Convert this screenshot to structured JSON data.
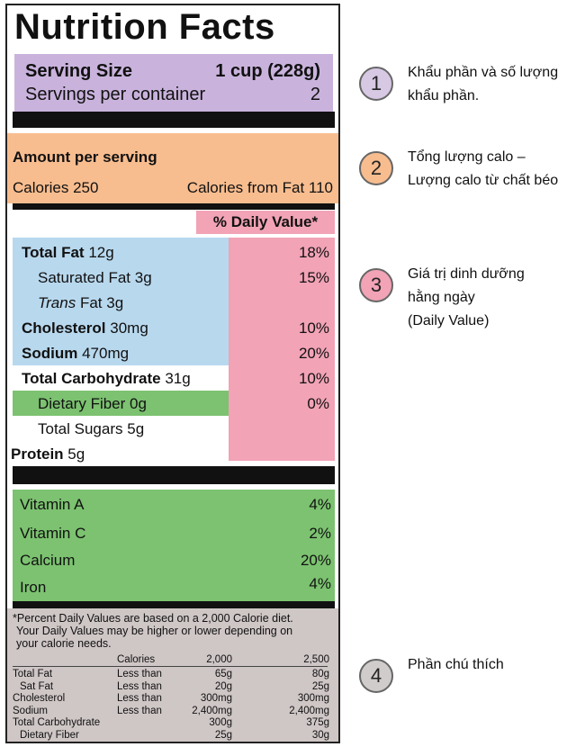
{
  "title": "Nutrition Facts",
  "serving": {
    "size_label": "Serving Size",
    "size_value": "1 cup (228g)",
    "per_container_label": "Servings per container",
    "per_container_value": "2"
  },
  "amount": {
    "header": "Amount per serving",
    "calories": "Calories 250",
    "calories_fat": "Calories from Fat 110"
  },
  "dv_header": "% Daily Value*",
  "nutrients": [
    {
      "name": "Total Fat",
      "amount": "12g",
      "pct": "18%"
    },
    {
      "name": "Saturated Fat",
      "amount": "3g",
      "pct": "15%"
    },
    {
      "name": "Trans",
      "name2": "Fat",
      "amount": "3g",
      "pct": ""
    },
    {
      "name": "Cholesterol",
      "amount": "30mg",
      "pct": "10%"
    },
    {
      "name": "Sodium",
      "amount": "470mg",
      "pct": "20%"
    },
    {
      "name": "Total Carbohydrate",
      "amount": "31g",
      "pct": "10%"
    },
    {
      "name": "Dietary Fiber",
      "amount": "0g",
      "pct": "0%"
    },
    {
      "name": "Total Sugars",
      "amount": "5g",
      "pct": ""
    },
    {
      "name": "Protein",
      "amount": "5g",
      "pct": ""
    }
  ],
  "vitamins": [
    {
      "name": "Vitamin A",
      "pct": "4%"
    },
    {
      "name": "Vitamin C",
      "pct": "2%"
    },
    {
      "name": "Calcium",
      "pct": "20%"
    },
    {
      "name": "Iron",
      "pct": "4%"
    }
  ],
  "footnote": {
    "text1": "*Percent Daily Values are based on a 2,000 Calorie diet.",
    "text2": "Your Daily Values may be higher or lower depending on",
    "text3": "your calorie needs.",
    "table": {
      "header": [
        "Calories",
        "2,000",
        "2,500"
      ],
      "rows": [
        [
          "Total Fat",
          "Less than",
          "65g",
          "80g"
        ],
        [
          "Sat Fat",
          "Less than",
          "20g",
          "25g"
        ],
        [
          "Cholesterol",
          "Less than",
          "300mg",
          "300mg"
        ],
        [
          "Sodium",
          "Less than",
          "2,400mg",
          "2,400mg"
        ],
        [
          "Total Carbohydrate",
          "",
          "300g",
          "375g"
        ],
        [
          "Dietary Fiber",
          "",
          "25g",
          "30g"
        ]
      ]
    }
  },
  "legend": [
    {
      "num": "1",
      "line1": "Khẩu phần và số lượng",
      "line2": "khẩu phần.",
      "line3": "",
      "color": "#d7c8e4"
    },
    {
      "num": "2",
      "line1": "Tổng lượng calo –",
      "line2": "Lượng calo từ chất béo",
      "line3": "",
      "color": "#f8bd8f"
    },
    {
      "num": "3",
      "line1": "Giá trị dinh dưỡng",
      "line2": "hằng ngày",
      "line3": "(Daily Value)",
      "color": "#f2a3b6"
    },
    {
      "num": "4",
      "line1": "Phần chú thích",
      "line2": "",
      "line3": "",
      "color": "#d0cccc"
    }
  ]
}
